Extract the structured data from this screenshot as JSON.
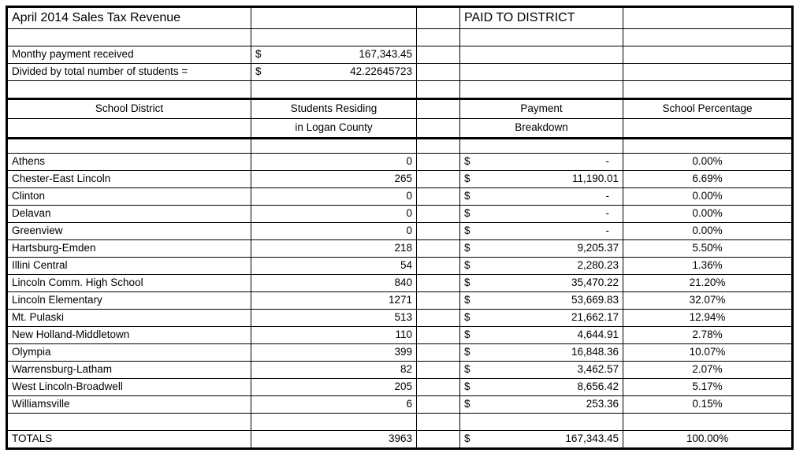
{
  "sheet": {
    "title": "April 2014 Sales Tax Revenue",
    "paid_to_district": "PAID TO DISTRICT",
    "summary": [
      {
        "label": "Monthy payment received",
        "currency": "$",
        "value": "167,343.45"
      },
      {
        "label": "Divided by total number of students =",
        "currency": "$",
        "value": "42.22645723"
      }
    ],
    "columns": {
      "district": "School District",
      "students_line1": "Students Residing",
      "students_line2": "in Logan County",
      "payment_line1": "Payment",
      "payment_line2": "Breakdown",
      "percentage": "School Percentage"
    },
    "rows": [
      {
        "district": "Athens",
        "students": "0",
        "currency": "$",
        "payment": "-",
        "percentage": "0.00%"
      },
      {
        "district": "Chester-East Lincoln",
        "students": "265",
        "currency": "$",
        "payment": "11,190.01",
        "percentage": "6.69%"
      },
      {
        "district": "Clinton",
        "students": "0",
        "currency": "$",
        "payment": "-",
        "percentage": "0.00%"
      },
      {
        "district": "Delavan",
        "students": "0",
        "currency": "$",
        "payment": "-",
        "percentage": "0.00%"
      },
      {
        "district": "Greenview",
        "students": "0",
        "currency": "$",
        "payment": "-",
        "percentage": "0.00%"
      },
      {
        "district": "Hartsburg-Emden",
        "students": "218",
        "currency": "$",
        "payment": "9,205.37",
        "percentage": "5.50%"
      },
      {
        "district": "Illini Central",
        "students": "54",
        "currency": "$",
        "payment": "2,280.23",
        "percentage": "1.36%"
      },
      {
        "district": "Lincoln Comm. High School",
        "students": "840",
        "currency": "$",
        "payment": "35,470.22",
        "percentage": "21.20%"
      },
      {
        "district": "Lincoln Elementary",
        "students": "1271",
        "currency": "$",
        "payment": "53,669.83",
        "percentage": "32.07%"
      },
      {
        "district": "Mt. Pulaski",
        "students": "513",
        "currency": "$",
        "payment": "21,662.17",
        "percentage": "12.94%"
      },
      {
        "district": "New Holland-Middletown",
        "students": "110",
        "currency": "$",
        "payment": "4,644.91",
        "percentage": "2.78%"
      },
      {
        "district": "Olympia",
        "students": "399",
        "currency": "$",
        "payment": "16,848.36",
        "percentage": "10.07%"
      },
      {
        "district": "Warrensburg-Latham",
        "students": "82",
        "currency": "$",
        "payment": "3,462.57",
        "percentage": "2.07%"
      },
      {
        "district": "West Lincoln-Broadwell",
        "students": "205",
        "currency": "$",
        "payment": "8,656.42",
        "percentage": "5.17%"
      },
      {
        "district": "Williamsville",
        "students": "6",
        "currency": "$",
        "payment": "253.36",
        "percentage": "0.15%"
      }
    ],
    "totals": {
      "label": "TOTALS",
      "students": "3963",
      "currency": "$",
      "payment": "167,343.45",
      "percentage": "100.00%"
    },
    "colors": {
      "border": "#000000",
      "text": "#000000",
      "background": "#ffffff"
    }
  }
}
